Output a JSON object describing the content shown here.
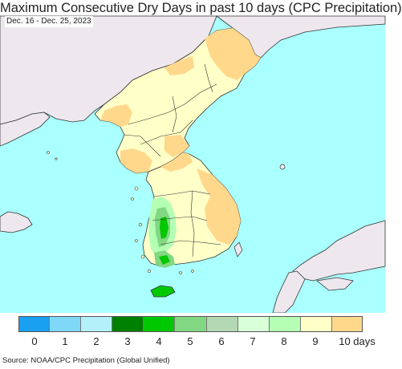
{
  "title": "Maximum Consecutive Dry Days in past 10 days (CPC Precipitation)",
  "subtitle": "Dec. 16 - Dec. 25, 2023",
  "source": "Source: NOAA/CPC Precipitation (Global Unified)",
  "colors": {
    "ocean": "#aaffff",
    "land_outside": "#eee8ee",
    "border": "#333333",
    "legend_bins": [
      "#1aa0f0",
      "#80d8f8",
      "#b4f0fa",
      "#008000",
      "#00c800",
      "#82d882",
      "#b4d8b4",
      "#d8ffd8",
      "#b4ffb4",
      "#ffffc8",
      "#ffd88c"
    ]
  },
  "legend": {
    "labels": [
      "0",
      "1",
      "2",
      "3",
      "4",
      "5",
      "6",
      "7",
      "8",
      "9",
      "10 days"
    ]
  }
}
